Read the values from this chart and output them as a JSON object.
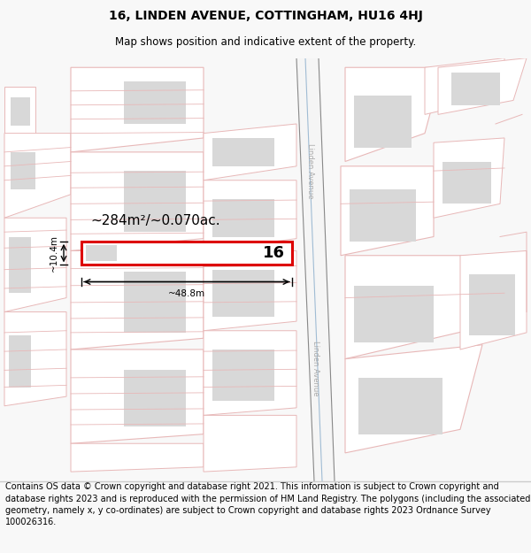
{
  "title": "16, LINDEN AVENUE, COTTINGHAM, HU16 4HJ",
  "subtitle": "Map shows position and indicative extent of the property.",
  "footer": "Contains OS data © Crown copyright and database right 2021. This information is subject to Crown copyright and database rights 2023 and is reproduced with the permission of HM Land Registry. The polygons (including the associated geometry, namely x, y co-ordinates) are subject to Crown copyright and database rights 2023 Ordnance Survey 100026316.",
  "area_label": "~284m²/~0.070ac.",
  "width_label": "~48.8m",
  "height_label": "~10.4m",
  "property_number": "16",
  "bg_color": "#f8f8f8",
  "map_bg": "#ffffff",
  "lc": "#e8b8b8",
  "gc": "#d8d8d8",
  "wc": "#ffffff",
  "highlight_color": "#dd0000",
  "road_line_color": "#555555",
  "road_blue_color": "#a0bcd4",
  "street_label": "Linden Avenue",
  "title_fontsize": 10,
  "subtitle_fontsize": 8.5,
  "footer_fontsize": 7.0
}
